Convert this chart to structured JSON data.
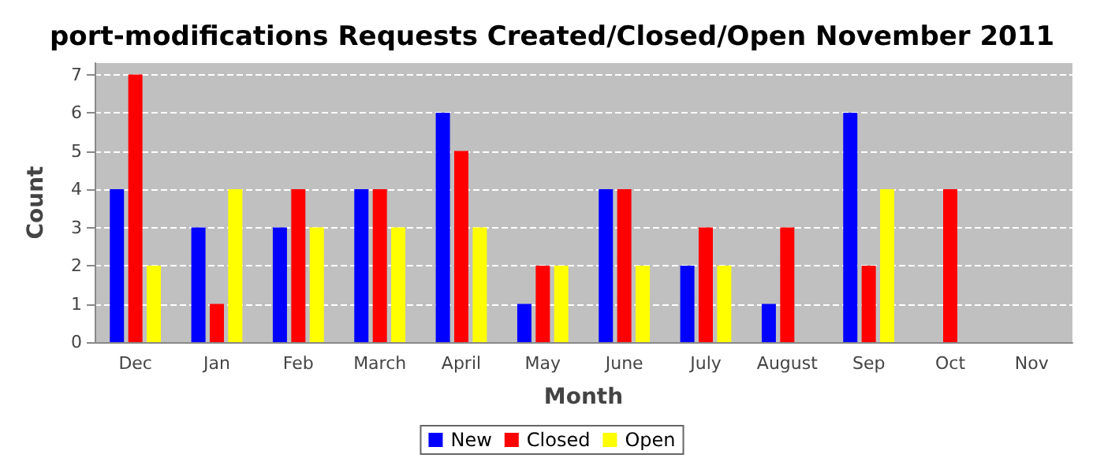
{
  "chart_data": {
    "type": "bar",
    "title": "port-modifications Requests Created/Closed/Open November 2011",
    "xlabel": "Month",
    "ylabel": "Count",
    "categories": [
      "Dec",
      "Jan",
      "Feb",
      "March",
      "April",
      "May",
      "June",
      "July",
      "August",
      "Sep",
      "Oct",
      "Nov"
    ],
    "series": [
      {
        "name": "New",
        "color": "#0000ff",
        "values": [
          4,
          3,
          3,
          4,
          6,
          1,
          4,
          2,
          1,
          6,
          0,
          0
        ]
      },
      {
        "name": "Closed",
        "color": "#ff0000",
        "values": [
          7,
          1,
          4,
          4,
          5,
          2,
          4,
          3,
          3,
          2,
          4,
          0
        ]
      },
      {
        "name": "Open",
        "color": "#ffff00",
        "values": [
          2,
          4,
          3,
          3,
          3,
          2,
          2,
          2,
          0,
          4,
          0,
          0
        ]
      }
    ],
    "ylim": [
      0,
      7.3
    ],
    "yticks": [
      0,
      1,
      2,
      3,
      4,
      5,
      6,
      7
    ],
    "grid": "y",
    "legend": "bottom"
  }
}
